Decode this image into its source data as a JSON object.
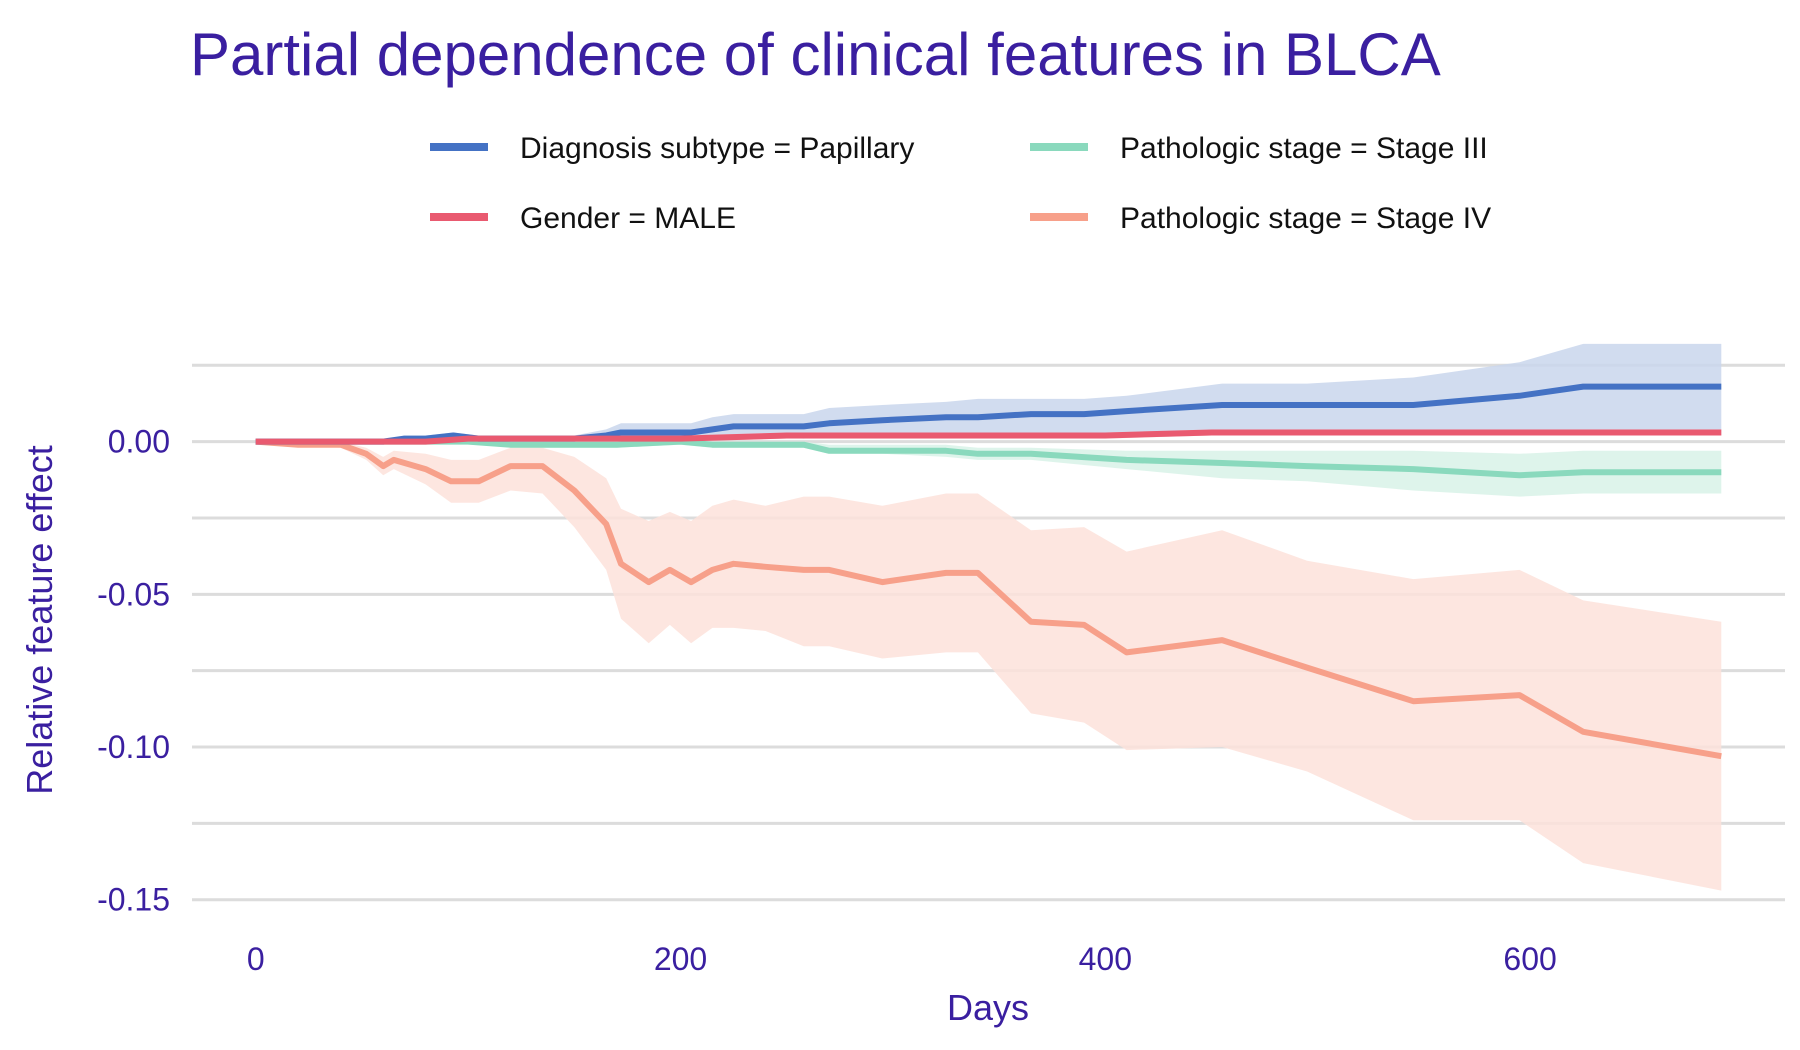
{
  "chart_data": {
    "type": "line",
    "title": "Partial dependence of clinical features in BLCA",
    "xlabel": "Days",
    "ylabel": "Relative feature effect",
    "xlim": [
      -30,
      720
    ],
    "ylim": [
      -0.155,
      0.03
    ],
    "xticks": [
      0,
      200,
      400,
      600
    ],
    "xtick_labels": [
      "0",
      "200",
      "400",
      "600"
    ],
    "yticks": [
      0.0,
      -0.05,
      -0.1,
      -0.15
    ],
    "ytick_labels": [
      "0.00",
      "-0.05",
      "-0.10",
      "-0.15"
    ],
    "grid": true,
    "legend_position": "top",
    "series": [
      {
        "name": "Diagnosis subtype = Papillary",
        "color": "#4472c4",
        "band_color": "#c9d6ec",
        "x": [
          0,
          20,
          40,
          60,
          70,
          80,
          93,
          105,
          120,
          135,
          150,
          165,
          172,
          185,
          195,
          205,
          215,
          225,
          240,
          258,
          270,
          295,
          325,
          340,
          365,
          390,
          410,
          455,
          495,
          545,
          595,
          625,
          690
        ],
        "y": [
          0.0,
          0.0,
          0.0,
          0.0,
          0.001,
          0.001,
          0.002,
          0.001,
          0.001,
          0.001,
          0.001,
          0.002,
          0.003,
          0.003,
          0.003,
          0.003,
          0.004,
          0.005,
          0.005,
          0.005,
          0.006,
          0.007,
          0.008,
          0.008,
          0.009,
          0.009,
          0.01,
          0.012,
          0.012,
          0.012,
          0.015,
          0.018,
          0.018
        ],
        "lower": [
          0.0,
          0.0,
          0.0,
          0.0,
          0.0,
          0.0,
          0.0,
          0.0,
          0.0,
          0.0,
          0.0,
          0.0,
          0.001,
          0.001,
          0.001,
          0.001,
          0.001,
          0.002,
          0.002,
          0.001,
          0.002,
          0.002,
          0.002,
          0.002,
          0.002,
          0.002,
          0.002,
          0.002,
          0.002,
          0.002,
          0.002,
          0.002,
          0.002
        ],
        "upper": [
          0.0,
          0.0,
          0.0,
          0.0,
          0.002,
          0.002,
          0.003,
          0.002,
          0.002,
          0.002,
          0.002,
          0.004,
          0.006,
          0.006,
          0.006,
          0.006,
          0.008,
          0.009,
          0.009,
          0.009,
          0.011,
          0.012,
          0.013,
          0.014,
          0.014,
          0.014,
          0.015,
          0.019,
          0.019,
          0.021,
          0.026,
          0.032,
          0.032
        ]
      },
      {
        "name": "Gender = MALE",
        "color": "#e95a70",
        "band_color": "#f6d0d6",
        "x": [
          0,
          20,
          40,
          60,
          80,
          100,
          120,
          150,
          200,
          250,
          300,
          350,
          400,
          450,
          500,
          550,
          600,
          650,
          690
        ],
        "y": [
          0.0,
          0.0,
          0.0,
          0.0,
          0.0,
          0.001,
          0.001,
          0.001,
          0.001,
          0.002,
          0.002,
          0.002,
          0.002,
          0.003,
          0.003,
          0.003,
          0.003,
          0.003,
          0.003
        ],
        "lower": [
          0.0,
          0.0,
          0.0,
          0.0,
          0.0,
          0.0,
          0.0,
          0.0,
          0.0,
          0.001,
          0.001,
          0.001,
          0.001,
          0.002,
          0.002,
          0.002,
          0.002,
          0.002,
          0.002
        ],
        "upper": [
          0.0,
          0.0,
          0.0,
          0.0,
          0.0,
          0.002,
          0.002,
          0.002,
          0.002,
          0.003,
          0.003,
          0.003,
          0.003,
          0.004,
          0.004,
          0.004,
          0.004,
          0.004,
          0.004
        ]
      },
      {
        "name": "Pathologic stage = Stage III",
        "color": "#8ad9bd",
        "band_color": "#d8f2e8",
        "x": [
          0,
          20,
          40,
          60,
          80,
          100,
          120,
          150,
          170,
          200,
          215,
          240,
          258,
          270,
          295,
          325,
          340,
          365,
          410,
          455,
          495,
          545,
          595,
          625,
          690
        ],
        "y": [
          0.0,
          0.0,
          0.0,
          0.0,
          0.0,
          0.0,
          -0.001,
          -0.001,
          -0.001,
          0.0,
          -0.001,
          -0.001,
          -0.001,
          -0.003,
          -0.003,
          -0.003,
          -0.004,
          -0.004,
          -0.006,
          -0.007,
          -0.008,
          -0.009,
          -0.011,
          -0.01,
          -0.01
        ],
        "lower": [
          0.0,
          0.0,
          0.0,
          0.0,
          0.0,
          0.0,
          -0.002,
          -0.002,
          -0.002,
          -0.001,
          -0.002,
          -0.002,
          -0.002,
          -0.004,
          -0.004,
          -0.005,
          -0.006,
          -0.006,
          -0.009,
          -0.012,
          -0.013,
          -0.016,
          -0.018,
          -0.017,
          -0.017
        ],
        "upper": [
          0.0,
          0.0,
          0.0,
          0.0,
          0.0,
          0.0,
          0.0,
          0.0,
          0.0,
          0.001,
          0.0,
          0.0,
          0.0,
          -0.001,
          -0.001,
          -0.001,
          -0.002,
          -0.002,
          -0.003,
          -0.003,
          -0.003,
          -0.003,
          -0.004,
          -0.003,
          -0.003
        ]
      },
      {
        "name": "Pathologic stage = Stage IV",
        "color": "#f7a08a",
        "band_color": "#fde2db",
        "x": [
          0,
          20,
          40,
          52,
          60,
          65,
          80,
          92,
          105,
          120,
          135,
          150,
          165,
          172,
          185,
          195,
          205,
          215,
          225,
          240,
          258,
          270,
          295,
          325,
          340,
          365,
          390,
          410,
          455,
          495,
          545,
          595,
          625,
          690
        ],
        "y": [
          0.0,
          -0.001,
          -0.001,
          -0.004,
          -0.008,
          -0.006,
          -0.009,
          -0.013,
          -0.013,
          -0.008,
          -0.008,
          -0.016,
          -0.027,
          -0.04,
          -0.046,
          -0.042,
          -0.046,
          -0.042,
          -0.04,
          -0.041,
          -0.042,
          -0.042,
          -0.046,
          -0.043,
          -0.043,
          -0.059,
          -0.06,
          -0.069,
          -0.065,
          -0.074,
          -0.085,
          -0.083,
          -0.095,
          -0.103
        ],
        "lower": [
          0.0,
          -0.001,
          -0.002,
          -0.006,
          -0.011,
          -0.009,
          -0.014,
          -0.02,
          -0.02,
          -0.016,
          -0.017,
          -0.028,
          -0.042,
          -0.058,
          -0.066,
          -0.06,
          -0.066,
          -0.061,
          -0.061,
          -0.062,
          -0.067,
          -0.067,
          -0.071,
          -0.069,
          -0.069,
          -0.089,
          -0.092,
          -0.101,
          -0.1,
          -0.108,
          -0.124,
          -0.124,
          -0.138,
          -0.147
        ],
        "upper": [
          0.0,
          0.0,
          0.0,
          -0.002,
          -0.005,
          -0.003,
          -0.004,
          -0.006,
          -0.006,
          -0.002,
          -0.002,
          -0.005,
          -0.012,
          -0.022,
          -0.026,
          -0.023,
          -0.026,
          -0.021,
          -0.019,
          -0.021,
          -0.018,
          -0.018,
          -0.021,
          -0.017,
          -0.017,
          -0.029,
          -0.028,
          -0.036,
          -0.029,
          -0.039,
          -0.045,
          -0.042,
          -0.052,
          -0.059
        ]
      }
    ]
  }
}
